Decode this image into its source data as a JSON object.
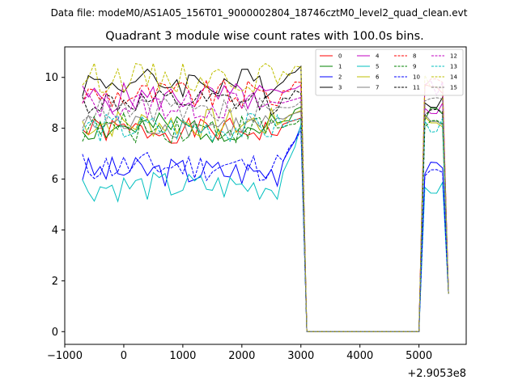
{
  "suptitle": "Data file: modeM0/AS1A05_156T01_9000002804_18746cztM0_level2_quad_clean.evt",
  "chart_data": {
    "type": "line",
    "title": "Quadrant 3 module wise count rates with 100.0s bins.",
    "xlabel": "",
    "ylabel": "",
    "x_offset_label": "+2.9053e8",
    "xlim": [
      -1000,
      5800
    ],
    "ylim": [
      -0.5,
      11.2
    ],
    "xticks": [
      -1000,
      0,
      1000,
      2000,
      3000,
      4000,
      5000
    ],
    "xtick_labels": [
      "−1000",
      "0",
      "1000",
      "2000",
      "3000",
      "4000",
      "5000"
    ],
    "yticks": [
      0,
      2,
      4,
      6,
      8,
      10
    ],
    "ytick_labels": [
      "0",
      "2",
      "4",
      "6",
      "8",
      "10"
    ],
    "grid": false,
    "legend_position": "top-right",
    "legend_columns": 4,
    "x_start": -700,
    "x_step": 100,
    "gap_start_index": 38,
    "gap_end_index": 57,
    "series": [
      {
        "name": "0",
        "color": "#ff0000",
        "dash": "solid",
        "level": 7.9,
        "amp": 0.25,
        "seed": 1,
        "rise": 0.6,
        "peak": 9.5,
        "end": 1.5
      },
      {
        "name": "1",
        "color": "#008000",
        "dash": "solid",
        "level": 8.0,
        "amp": 0.3,
        "seed": 2,
        "rise": 0.9,
        "peak": 8.6,
        "end": 1.5
      },
      {
        "name": "2",
        "color": "#0000ff",
        "dash": "solid",
        "level": 6.3,
        "amp": 0.3,
        "seed": 3,
        "rise": 1.8,
        "peak": 6.4,
        "end": 1.5
      },
      {
        "name": "3",
        "color": "#000000",
        "dash": "solid",
        "level": 9.8,
        "amp": 0.3,
        "seed": 4,
        "rise": 0.6,
        "peak": 9.1,
        "end": 1.5
      },
      {
        "name": "4",
        "color": "#c000c0",
        "dash": "solid",
        "level": 9.2,
        "amp": 0.3,
        "seed": 5,
        "rise": 0.4,
        "peak": 8.8,
        "end": 1.5
      },
      {
        "name": "5",
        "color": "#00bfbf",
        "dash": "solid",
        "level": 5.7,
        "amp": 0.3,
        "seed": 6,
        "rise": 2.3,
        "peak": 5.6,
        "end": 1.5
      },
      {
        "name": "6",
        "color": "#bfbf00",
        "dash": "solid",
        "level": 8.2,
        "amp": 0.3,
        "seed": 7,
        "rise": 0.6,
        "peak": 8.3,
        "end": 1.5
      },
      {
        "name": "7",
        "color": "#808080",
        "dash": "solid",
        "level": 8.1,
        "amp": 0.25,
        "seed": 8,
        "rise": 0.6,
        "peak": 8.3,
        "end": 1.5
      },
      {
        "name": "8",
        "color": "#ff0000",
        "dash": "dashed",
        "level": 9.3,
        "amp": 0.3,
        "seed": 9,
        "rise": 0.5,
        "peak": 9.9,
        "end": 1.5
      },
      {
        "name": "9",
        "color": "#008000",
        "dash": "dashed",
        "level": 8.0,
        "amp": 0.3,
        "seed": 10,
        "rise": 0.3,
        "peak": 8.2,
        "end": 1.5
      },
      {
        "name": "10",
        "color": "#0000ff",
        "dash": "dashed",
        "level": 6.5,
        "amp": 0.3,
        "seed": 11,
        "rise": 1.3,
        "peak": 6.2,
        "end": 1.5
      },
      {
        "name": "11",
        "color": "#000000",
        "dash": "dashed",
        "level": 9.0,
        "amp": 0.25,
        "seed": 12,
        "rise": 0.5,
        "peak": 8.5,
        "end": 1.5
      },
      {
        "name": "12",
        "color": "#c000c0",
        "dash": "dashed",
        "level": 8.9,
        "amp": 0.3,
        "seed": 13,
        "rise": 0.4,
        "peak": 9.6,
        "end": 1.5
      },
      {
        "name": "13",
        "color": "#00bfbf",
        "dash": "dashed",
        "level": 8.0,
        "amp": 0.3,
        "seed": 14,
        "rise": 0.4,
        "peak": 8.1,
        "end": 1.5
      },
      {
        "name": "14",
        "color": "#bfbf00",
        "dash": "dashed",
        "level": 10.0,
        "amp": 0.3,
        "seed": 15,
        "rise": 0.4,
        "peak": 9.8,
        "end": 1.5
      },
      {
        "name": "15",
        "color": "#808080",
        "dash": "dashed",
        "level": 8.7,
        "amp": 0.25,
        "seed": 16,
        "rise": 0.3,
        "peak": 9.3,
        "end": 1.5
      }
    ]
  }
}
